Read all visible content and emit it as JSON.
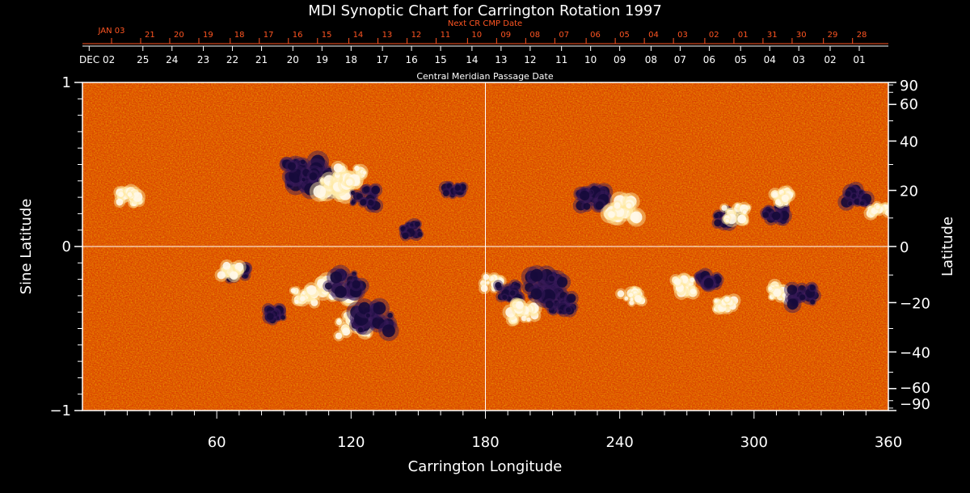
{
  "chart_data": {
    "type": "heatmap",
    "title": "MDI Synoptic Chart for Carrington Rotation 1997",
    "xlabel": "Carrington Longitude",
    "ylabel_left": "Sine Latitude",
    "ylabel_right": "Latitude",
    "top_axis_upper_label": "Next CR CMP Date",
    "top_axis_lower_label": "Central Meridian Passage Date",
    "xlim": [
      0,
      360
    ],
    "ylim": [
      -1,
      1
    ],
    "x_ticks": [
      60,
      120,
      180,
      240,
      300,
      360
    ],
    "y_ticks_left": [
      {
        "value": 1,
        "label": "1"
      },
      {
        "value": 0,
        "label": "0"
      },
      {
        "value": -1,
        "label": "−1"
      }
    ],
    "y_ticks_right": [
      {
        "deg": 90,
        "label": "90"
      },
      {
        "deg": 60,
        "label": "60"
      },
      {
        "deg": 40,
        "label": "40"
      },
      {
        "deg": 20,
        "label": "20"
      },
      {
        "deg": 0,
        "label": "0"
      },
      {
        "deg": -20,
        "label": "−20"
      },
      {
        "deg": -40,
        "label": "−40"
      },
      {
        "deg": -60,
        "label": "−60"
      },
      {
        "deg": -90,
        "label": "−90"
      }
    ],
    "next_cr_dates": [
      {
        "lon": 13,
        "label": "JAN 03"
      },
      {
        "lon": 26,
        "label": "21"
      },
      {
        "lon": 39,
        "label": "20"
      },
      {
        "lon": 52,
        "label": "19"
      },
      {
        "lon": 66,
        "label": "18"
      },
      {
        "lon": 79,
        "label": "17"
      },
      {
        "lon": 92,
        "label": "16"
      },
      {
        "lon": 105,
        "label": "15"
      },
      {
        "lon": 119,
        "label": "14"
      },
      {
        "lon": 132,
        "label": "13"
      },
      {
        "lon": 145,
        "label": "12"
      },
      {
        "lon": 158,
        "label": "11"
      },
      {
        "lon": 172,
        "label": "10"
      },
      {
        "lon": 185,
        "label": "09"
      },
      {
        "lon": 198,
        "label": "08"
      },
      {
        "lon": 211,
        "label": "07"
      },
      {
        "lon": 225,
        "label": "06"
      },
      {
        "lon": 238,
        "label": "05"
      },
      {
        "lon": 251,
        "label": "04"
      },
      {
        "lon": 264,
        "label": "03"
      },
      {
        "lon": 278,
        "label": "02"
      },
      {
        "lon": 291,
        "label": "01"
      },
      {
        "lon": 304,
        "label": "31"
      },
      {
        "lon": 317,
        "label": "30"
      },
      {
        "lon": 331,
        "label": "29"
      },
      {
        "lon": 344,
        "label": "28"
      }
    ],
    "cmp_dates": [
      {
        "lon": 3,
        "label": "DEC 02"
      },
      {
        "lon": 27,
        "label": "25"
      },
      {
        "lon": 40,
        "label": "24"
      },
      {
        "lon": 54,
        "label": "23"
      },
      {
        "lon": 67,
        "label": "22"
      },
      {
        "lon": 80,
        "label": "21"
      },
      {
        "lon": 94,
        "label": "20"
      },
      {
        "lon": 107,
        "label": "19"
      },
      {
        "lon": 120,
        "label": "18"
      },
      {
        "lon": 134,
        "label": "17"
      },
      {
        "lon": 147,
        "label": "16"
      },
      {
        "lon": 160,
        "label": "15"
      },
      {
        "lon": 174,
        "label": "14"
      },
      {
        "lon": 187,
        "label": "13"
      },
      {
        "lon": 200,
        "label": "12"
      },
      {
        "lon": 214,
        "label": "11"
      },
      {
        "lon": 227,
        "label": "10"
      },
      {
        "lon": 240,
        "label": "09"
      },
      {
        "lon": 254,
        "label": "08"
      },
      {
        "lon": 267,
        "label": "07"
      },
      {
        "lon": 280,
        "label": "06"
      },
      {
        "lon": 294,
        "label": "05"
      },
      {
        "lon": 307,
        "label": "04"
      },
      {
        "lon": 320,
        "label": "03"
      },
      {
        "lon": 334,
        "label": "02"
      },
      {
        "lon": 347,
        "label": "01"
      }
    ],
    "active_regions": [
      {
        "lon": 98,
        "sinlat": 0.45,
        "polarity": "neg",
        "strength": 1.0
      },
      {
        "lon": 106,
        "sinlat": 0.4,
        "polarity": "neg",
        "strength": 0.9
      },
      {
        "lon": 113,
        "sinlat": 0.37,
        "polarity": "pos",
        "strength": 0.9
      },
      {
        "lon": 120,
        "sinlat": 0.42,
        "polarity": "pos",
        "strength": 0.8
      },
      {
        "lon": 126,
        "sinlat": 0.3,
        "polarity": "neg",
        "strength": 0.7
      },
      {
        "lon": 21,
        "sinlat": 0.3,
        "polarity": "pos",
        "strength": 0.6
      },
      {
        "lon": 166,
        "sinlat": 0.35,
        "polarity": "neg",
        "strength": 0.5
      },
      {
        "lon": 147,
        "sinlat": 0.1,
        "polarity": "neg",
        "strength": 0.5
      },
      {
        "lon": 227,
        "sinlat": 0.3,
        "polarity": "neg",
        "strength": 0.8
      },
      {
        "lon": 242,
        "sinlat": 0.23,
        "polarity": "pos",
        "strength": 0.8
      },
      {
        "lon": 288,
        "sinlat": 0.18,
        "polarity": "neg",
        "strength": 0.6
      },
      {
        "lon": 292,
        "sinlat": 0.2,
        "polarity": "pos",
        "strength": 0.7
      },
      {
        "lon": 310,
        "sinlat": 0.2,
        "polarity": "neg",
        "strength": 0.6
      },
      {
        "lon": 313,
        "sinlat": 0.3,
        "polarity": "pos",
        "strength": 0.5
      },
      {
        "lon": 347,
        "sinlat": 0.3,
        "polarity": "neg",
        "strength": 0.7
      },
      {
        "lon": 356,
        "sinlat": 0.22,
        "polarity": "pos",
        "strength": 0.5
      },
      {
        "lon": 69,
        "sinlat": -0.16,
        "polarity": "neg",
        "strength": 0.6
      },
      {
        "lon": 66,
        "sinlat": -0.14,
        "polarity": "pos",
        "strength": 0.5
      },
      {
        "lon": 113,
        "sinlat": -0.26,
        "polarity": "pos",
        "strength": 0.8
      },
      {
        "lon": 117,
        "sinlat": -0.23,
        "polarity": "neg",
        "strength": 0.9
      },
      {
        "lon": 121,
        "sinlat": -0.48,
        "polarity": "pos",
        "strength": 0.9
      },
      {
        "lon": 130,
        "sinlat": -0.44,
        "polarity": "neg",
        "strength": 1.0
      },
      {
        "lon": 87,
        "sinlat": -0.42,
        "polarity": "neg",
        "strength": 0.5
      },
      {
        "lon": 99,
        "sinlat": -0.3,
        "polarity": "pos",
        "strength": 0.6
      },
      {
        "lon": 183,
        "sinlat": -0.22,
        "polarity": "pos",
        "strength": 0.5
      },
      {
        "lon": 190,
        "sinlat": -0.28,
        "polarity": "neg",
        "strength": 0.6
      },
      {
        "lon": 197,
        "sinlat": -0.4,
        "polarity": "pos",
        "strength": 0.7
      },
      {
        "lon": 207,
        "sinlat": -0.24,
        "polarity": "neg",
        "strength": 1.0
      },
      {
        "lon": 214,
        "sinlat": -0.35,
        "polarity": "neg",
        "strength": 0.7
      },
      {
        "lon": 245,
        "sinlat": -0.3,
        "polarity": "pos",
        "strength": 0.6
      },
      {
        "lon": 268,
        "sinlat": -0.24,
        "polarity": "pos",
        "strength": 0.6
      },
      {
        "lon": 280,
        "sinlat": -0.22,
        "polarity": "neg",
        "strength": 0.6
      },
      {
        "lon": 287,
        "sinlat": -0.35,
        "polarity": "pos",
        "strength": 0.5
      },
      {
        "lon": 312,
        "sinlat": -0.28,
        "polarity": "pos",
        "strength": 0.6
      },
      {
        "lon": 322,
        "sinlat": -0.3,
        "polarity": "neg",
        "strength": 0.7
      }
    ]
  }
}
